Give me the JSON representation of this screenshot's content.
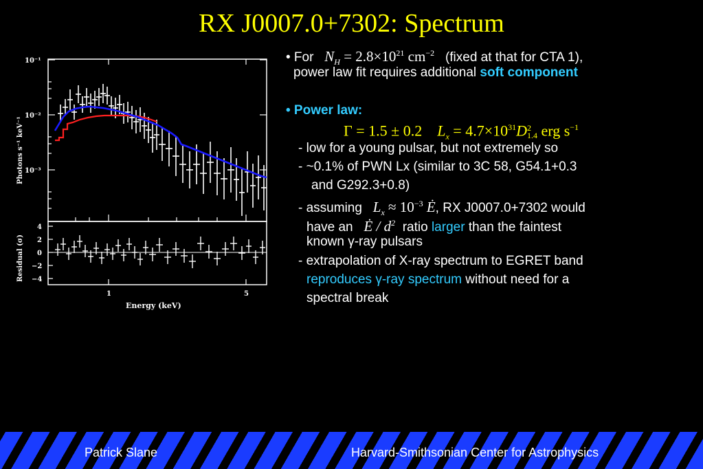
{
  "title": "RX J0007.0+7302: Spectrum",
  "figure": {
    "y_label_top": "Photons s⁻¹ keV⁻¹",
    "y_label_bottom": "Residual (σ)",
    "x_label": "Energy (keV)",
    "y_ticks_top": [
      "10⁻¹",
      "10⁻²",
      "10⁻³"
    ],
    "y_ticks_bottom": [
      "4",
      "2",
      "0",
      "−2",
      "−4"
    ],
    "x_ticks": [
      "1",
      "5"
    ],
    "model_colors": {
      "total": "#1a1aff",
      "soft": "#ff2020"
    }
  },
  "bullet1": {
    "prefix": "• For",
    "nh_sym": "N",
    "nh_sub": "H",
    "nh_eq": "= 2.8×10",
    "nh_exp": "21",
    "nh_unit": "cm",
    "nh_unit_exp": "−2",
    "suffix": "(fixed at that for CTA 1),",
    "line2_text": "power law fit requires additional",
    "line2_emph": "soft component"
  },
  "bullet2": {
    "heading": "• Power law:",
    "gamma": "Γ = 1.5 ± 0.2",
    "lx_sym": "L",
    "lx_sub": "x",
    "lx_eq": "= 4.7×10",
    "lx_exp": "31",
    "lx_d": "D",
    "lx_d_sup": "2",
    "lx_d_sub": "1.4",
    "lx_unit": "erg s",
    "lx_unit_exp": "−1"
  },
  "items": {
    "i1": "-  low for a young pulsar, but not extremely so",
    "i2_l1": "-  ~0.1% of PWN Lx (similar to 3C 58, G54.1+0.3",
    "i2_l2": "and G292.3+0.8)",
    "i3_prefix": "- assuming",
    "i3_math_l": "L",
    "i3_math_sub": "x",
    "i3_math_eq": "≈ 10",
    "i3_math_exp": "−3",
    "i3_math_e": "Ė",
    "i3_suffix": ", RX J0007.0+7302 would",
    "i3_l2_a": "have an",
    "i3_l2_math": "Ė / d",
    "i3_l2_math_exp": "2",
    "i3_l2_b": "ratio",
    "i3_l2_emph": "larger",
    "i3_l2_c": "than the faintest",
    "i3_l3": "known γ-ray pulsars",
    "i4_l1": "- extrapolation of X-ray spectrum to EGRET band",
    "i4_l2_emph": "reproduces γ-ray spectrum",
    "i4_l2_rest": "without need for a",
    "i4_l3": "spectral break"
  },
  "footer": {
    "left": "Patrick Slane",
    "right": "Harvard-Smithsonian Center for Astrophysics"
  }
}
